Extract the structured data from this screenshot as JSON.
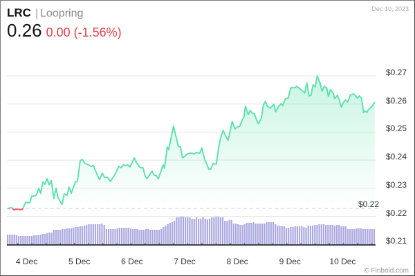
{
  "header": {
    "symbol": "LRC",
    "separator": "|",
    "name": "Loopring",
    "price": "0.26",
    "change": "0.00 (-1.56%)",
    "date": "Dec 10, 2023"
  },
  "footer": {
    "credit": "© Finbold.com"
  },
  "colors": {
    "up": "#5ee2ad",
    "down": "#ef5e67",
    "fill": "#5ee2ad",
    "volume": "#aaa8e0",
    "grid": "#e4e4e4",
    "reference": "#d0d0d0",
    "axis": "#111111",
    "change_text": "#e0404a"
  },
  "chart_data": {
    "type": "line",
    "title": "LRC | Loopring",
    "subtitle": "0.26 0.00 (-1.56%)",
    "xlabel": "",
    "ylabel": "",
    "ylim": [
      0.21,
      0.27
    ],
    "x_range_hours": 168,
    "grid": true,
    "legend": null,
    "yticks": [
      {
        "value": 0.27,
        "label": "$0.27"
      },
      {
        "value": 0.26,
        "label": "$0.26"
      },
      {
        "value": 0.25,
        "label": "$0.25"
      },
      {
        "value": 0.24,
        "label": "$0.24"
      },
      {
        "value": 0.23,
        "label": "$0.23"
      },
      {
        "value": 0.22,
        "label": "$0.22"
      },
      {
        "value": 0.21,
        "label": "$0.21"
      }
    ],
    "xticks": [
      {
        "label": "4 Dec",
        "hour": 9
      },
      {
        "label": "5 Dec",
        "hour": 33
      },
      {
        "label": "6 Dec",
        "hour": 57
      },
      {
        "label": "7 Dec",
        "hour": 81
      },
      {
        "label": "8 Dec",
        "hour": 105
      },
      {
        "label": "9 Dec",
        "hour": 129
      },
      {
        "label": "10 Dec",
        "hour": 153
      }
    ],
    "reference": {
      "value": 0.2228,
      "label": "$0.22"
    },
    "series": [
      {
        "name": "Price (USD)",
        "type": "line",
        "points": [
          [
            0.3,
            0.2228
          ],
          [
            2.2,
            0.2231
          ],
          [
            3.1,
            0.2223
          ],
          [
            4.7,
            0.2226
          ],
          [
            6.3,
            0.2223
          ],
          [
            7.2,
            0.2226
          ],
          [
            8.5,
            0.225
          ],
          [
            10.4,
            0.2248
          ],
          [
            11.3,
            0.2272
          ],
          [
            12.6,
            0.2272
          ],
          [
            13.5,
            0.2277
          ],
          [
            14.5,
            0.23
          ],
          [
            15.4,
            0.2282
          ],
          [
            16.4,
            0.2322
          ],
          [
            17.3,
            0.2314
          ],
          [
            18.3,
            0.2334
          ],
          [
            19.2,
            0.2312
          ],
          [
            20.2,
            0.2327
          ],
          [
            21.4,
            0.2263
          ],
          [
            22.4,
            0.23
          ],
          [
            23.3,
            0.2265
          ],
          [
            25.2,
            0.2243
          ],
          [
            26.1,
            0.228
          ],
          [
            27.4,
            0.2275
          ],
          [
            28.3,
            0.2304
          ],
          [
            29.3,
            0.2282
          ],
          [
            31.2,
            0.2322
          ],
          [
            32.1,
            0.2324
          ],
          [
            33.4,
            0.2398
          ],
          [
            34.3,
            0.2403
          ],
          [
            35.6,
            0.2388
          ],
          [
            37.2,
            0.2383
          ],
          [
            38.4,
            0.2378
          ],
          [
            39.4,
            0.2381
          ],
          [
            41.6,
            0.2339
          ],
          [
            42.2,
            0.2331
          ],
          [
            43.5,
            0.2354
          ],
          [
            44.4,
            0.2339
          ],
          [
            45.7,
            0.2339
          ],
          [
            47.2,
            0.2324
          ],
          [
            49.4,
            0.2351
          ],
          [
            51.0,
            0.2378
          ],
          [
            52.0,
            0.2373
          ],
          [
            52.9,
            0.2383
          ],
          [
            54.2,
            0.2381
          ],
          [
            55.1,
            0.2383
          ],
          [
            56.1,
            0.2376
          ],
          [
            58.0,
            0.2408
          ],
          [
            59.2,
            0.239
          ],
          [
            60.8,
            0.2373
          ],
          [
            62.0,
            0.2373
          ],
          [
            63.0,
            0.2344
          ],
          [
            63.9,
            0.2334
          ],
          [
            66.1,
            0.2361
          ],
          [
            67.1,
            0.2346
          ],
          [
            68.0,
            0.2346
          ],
          [
            69.0,
            0.2334
          ],
          [
            71.2,
            0.2383
          ],
          [
            71.8,
            0.2371
          ],
          [
            73.1,
            0.2447
          ],
          [
            73.7,
            0.2437
          ],
          [
            75.9,
            0.2521
          ],
          [
            78.1,
            0.2449
          ],
          [
            79.1,
            0.2447
          ],
          [
            80.0,
            0.2408
          ],
          [
            80.9,
            0.2413
          ],
          [
            82.2,
            0.2422
          ],
          [
            83.8,
            0.2425
          ],
          [
            85.0,
            0.2422
          ],
          [
            86.3,
            0.2427
          ],
          [
            87.9,
            0.2425
          ],
          [
            88.8,
            0.2444
          ],
          [
            90.1,
            0.2403
          ],
          [
            92.0,
            0.2368
          ],
          [
            92.9,
            0.2368
          ],
          [
            93.9,
            0.2388
          ],
          [
            95.4,
            0.2386
          ],
          [
            96.7,
            0.2454
          ],
          [
            97.6,
            0.2486
          ],
          [
            98.6,
            0.2506
          ],
          [
            99.8,
            0.2484
          ],
          [
            100.8,
            0.2471
          ],
          [
            102.7,
            0.2538
          ],
          [
            103.9,
            0.2511
          ],
          [
            104.9,
            0.2518
          ],
          [
            106.1,
            0.2521
          ],
          [
            107.4,
            0.2545
          ],
          [
            108.0,
            0.2553
          ],
          [
            108.7,
            0.2592
          ],
          [
            109.9,
            0.2562
          ],
          [
            110.9,
            0.2577
          ],
          [
            111.8,
            0.2567
          ],
          [
            112.8,
            0.2565
          ],
          [
            114.0,
            0.2538
          ],
          [
            114.6,
            0.253
          ],
          [
            115.9,
            0.2548
          ],
          [
            116.9,
            0.2597
          ],
          [
            117.8,
            0.2609
          ],
          [
            118.7,
            0.2592
          ],
          [
            120.0,
            0.2585
          ],
          [
            121.6,
            0.2599
          ],
          [
            122.5,
            0.2572
          ],
          [
            123.8,
            0.2592
          ],
          [
            125.0,
            0.2602
          ],
          [
            125.7,
            0.2594
          ],
          [
            126.9,
            0.2619
          ],
          [
            128.2,
            0.2621
          ],
          [
            129.4,
            0.2658
          ],
          [
            131.3,
            0.2658
          ],
          [
            132.0,
            0.2663
          ],
          [
            133.2,
            0.2656
          ],
          [
            134.5,
            0.2648
          ],
          [
            135.7,
            0.2639
          ],
          [
            136.7,
            0.2675
          ],
          [
            137.6,
            0.2629
          ],
          [
            138.6,
            0.2631
          ],
          [
            139.5,
            0.2668
          ],
          [
            140.5,
            0.2661
          ],
          [
            141.4,
            0.27
          ],
          [
            142.7,
            0.2675
          ],
          [
            143.6,
            0.2646
          ],
          [
            144.6,
            0.2663
          ],
          [
            145.8,
            0.2656
          ],
          [
            146.5,
            0.2626
          ],
          [
            147.4,
            0.2651
          ],
          [
            148.7,
            0.2639
          ],
          [
            149.3,
            0.2619
          ],
          [
            150.6,
            0.2631
          ],
          [
            151.5,
            0.2614
          ],
          [
            152.4,
            0.2589
          ],
          [
            153.4,
            0.2607
          ],
          [
            154.3,
            0.2614
          ],
          [
            155.3,
            0.2607
          ],
          [
            156.5,
            0.2631
          ],
          [
            157.8,
            0.2636
          ],
          [
            158.7,
            0.2631
          ],
          [
            159.7,
            0.2621
          ],
          [
            160.6,
            0.2629
          ],
          [
            161.6,
            0.2621
          ],
          [
            162.5,
            0.257
          ],
          [
            163.1,
            0.2575
          ],
          [
            164.1,
            0.257
          ],
          [
            164.7,
            0.258
          ],
          [
            166.0,
            0.2589
          ],
          [
            166.6,
            0.2594
          ],
          [
            167.6,
            0.2607
          ]
        ]
      },
      {
        "name": "Volume (relative)",
        "type": "bar",
        "values": [
          15,
          15,
          15,
          15,
          14,
          13,
          13,
          13,
          13,
          13,
          13,
          13,
          14,
          14,
          14,
          15,
          16,
          16,
          17,
          18,
          18,
          22,
          22,
          22,
          22,
          23,
          23,
          24,
          24,
          24,
          25,
          26,
          26,
          27,
          27,
          28,
          29,
          30,
          30,
          30,
          30,
          30,
          30,
          31,
          29,
          23,
          23,
          23,
          23,
          23,
          24,
          25,
          25,
          25,
          25,
          25,
          24,
          23,
          23,
          23,
          22,
          22,
          22,
          23,
          23,
          22,
          22,
          22,
          22,
          22,
          23,
          26,
          28,
          30,
          32,
          33,
          35,
          40,
          40,
          41,
          41,
          40,
          40,
          40,
          38,
          38,
          40,
          38,
          38,
          40,
          38,
          37,
          38,
          40,
          40,
          41,
          41,
          40,
          40,
          35,
          35,
          36,
          36,
          31,
          31,
          30,
          29,
          29,
          30,
          32,
          32,
          32,
          33,
          31,
          31,
          31,
          31,
          31,
          33,
          33,
          33,
          33,
          30,
          28,
          28,
          27,
          27,
          25,
          25,
          26,
          26,
          27,
          27,
          27,
          27,
          26,
          25,
          28,
          28,
          28,
          29,
          29,
          30,
          30,
          30,
          29,
          29,
          29,
          29,
          28,
          29,
          29,
          27,
          27,
          27,
          23,
          23,
          23,
          23,
          24,
          24,
          24,
          23,
          23,
          23,
          23,
          23,
          23
        ]
      }
    ]
  }
}
